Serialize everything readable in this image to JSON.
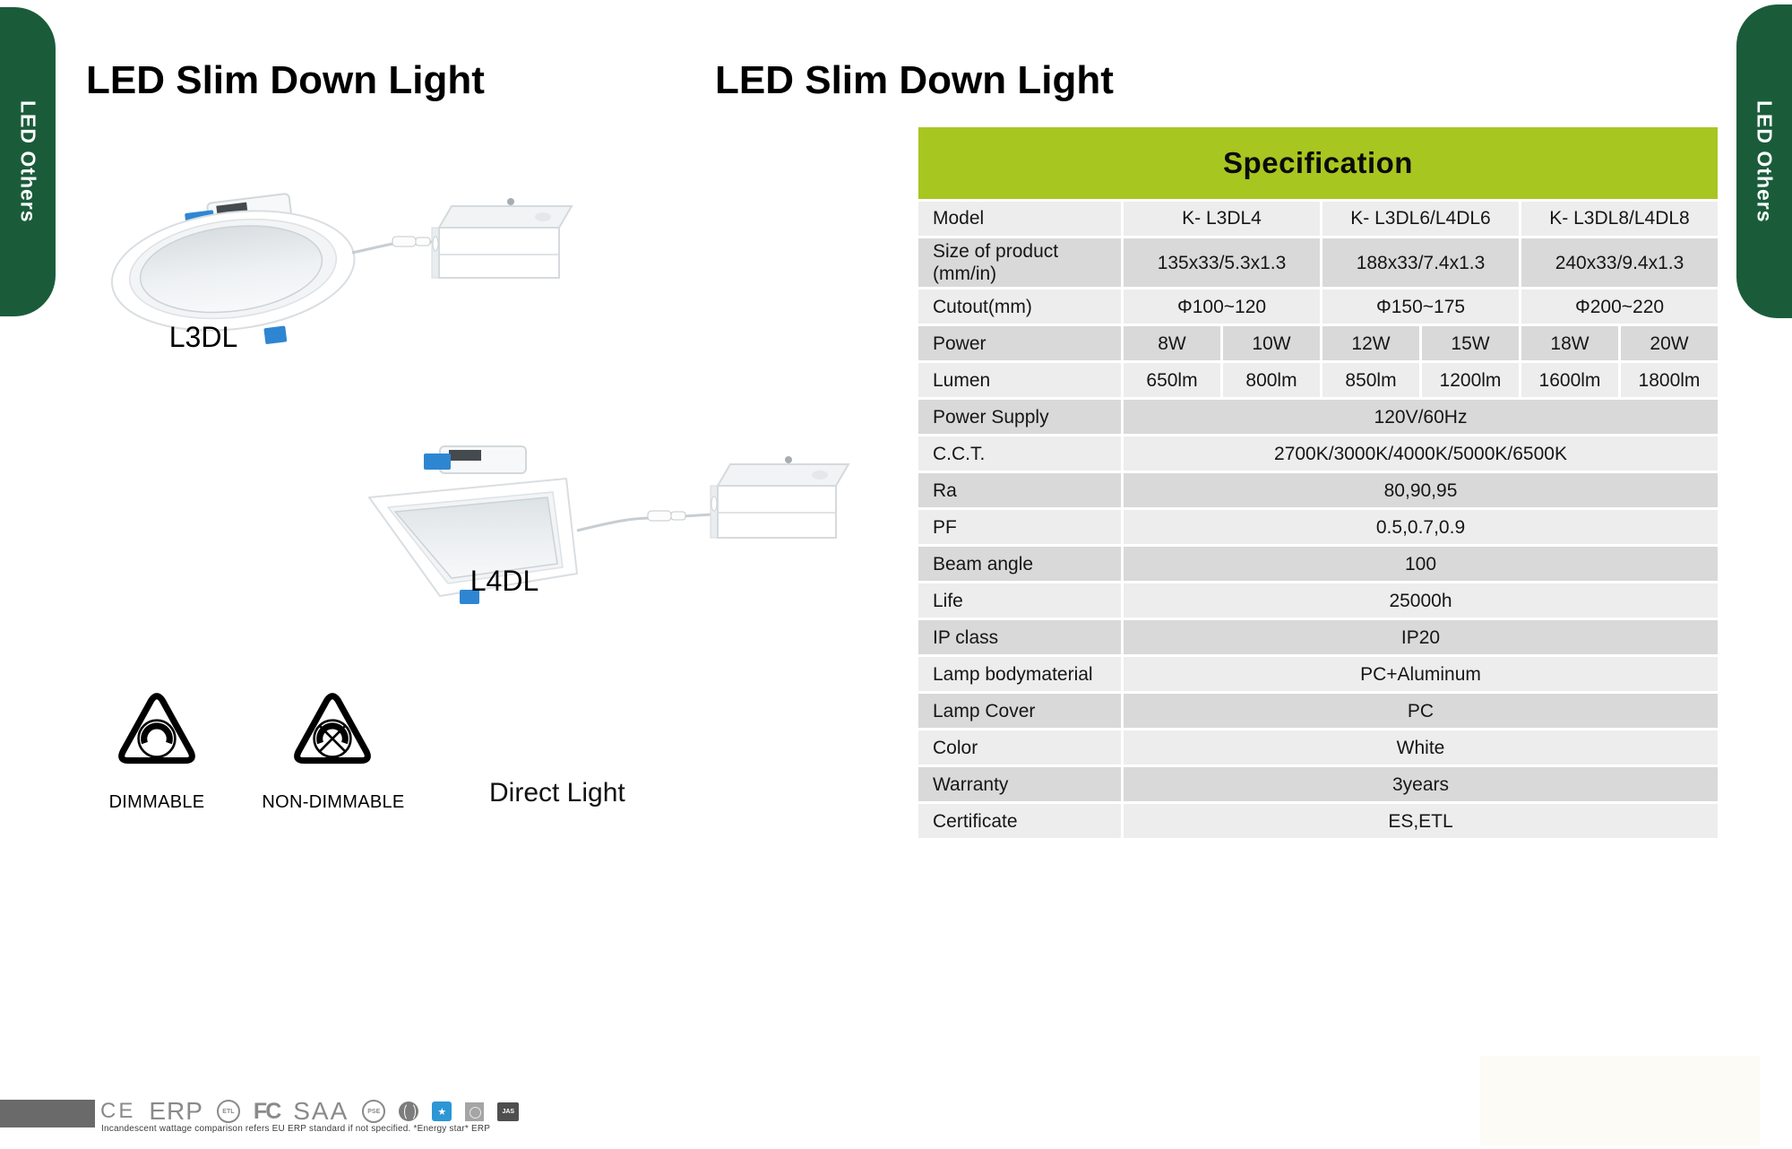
{
  "tabs": {
    "left_label": "LED Others",
    "right_label": "LED Others"
  },
  "left_panel": {
    "title": "LED Slim Down Light",
    "product1_label": "L3DL",
    "product2_label": "L4DL",
    "dimmable_label": "DIMMABLE",
    "non_dimmable_label": "NON-DIMMABLE",
    "direct_light_label": "Direct Light"
  },
  "right_panel": {
    "title": "LED Slim Down Light",
    "spec_table": {
      "header": "Specification",
      "rows": [
        {
          "label": "Model",
          "cells": [
            {
              "text": "K- L3DL4",
              "span": 2
            },
            {
              "text": "K- L3DL6/L4DL6",
              "span": 2
            },
            {
              "text": "K- L3DL8/L4DL8",
              "span": 2
            }
          ]
        },
        {
          "label": "Size of product (mm/in)",
          "cells": [
            {
              "text": "135x33/5.3x1.3",
              "span": 2
            },
            {
              "text": "188x33/7.4x1.3",
              "span": 2
            },
            {
              "text": "240x33/9.4x1.3",
              "span": 2
            }
          ]
        },
        {
          "label": "Cutout(mm)",
          "cells": [
            {
              "text": "Φ100~120",
              "span": 2
            },
            {
              "text": "Φ150~175",
              "span": 2
            },
            {
              "text": "Φ200~220",
              "span": 2
            }
          ]
        },
        {
          "label": "Power",
          "cells": [
            {
              "text": "8W"
            },
            {
              "text": "10W"
            },
            {
              "text": "12W"
            },
            {
              "text": "15W"
            },
            {
              "text": "18W"
            },
            {
              "text": "20W"
            }
          ]
        },
        {
          "label": "Lumen",
          "cells": [
            {
              "text": "650lm"
            },
            {
              "text": "800lm"
            },
            {
              "text": "850lm"
            },
            {
              "text": "1200lm"
            },
            {
              "text": "1600lm"
            },
            {
              "text": "1800lm"
            }
          ]
        },
        {
          "label": "Power Supply",
          "cells": [
            {
              "text": "120V/60Hz",
              "span": 6
            }
          ]
        },
        {
          "label": "C.C.T.",
          "cells": [
            {
              "text": "2700K/3000K/4000K/5000K/6500K",
              "span": 6
            }
          ]
        },
        {
          "label": "Ra",
          "cells": [
            {
              "text": "80,90,95",
              "span": 6
            }
          ]
        },
        {
          "label": "PF",
          "cells": [
            {
              "text": "0.5,0.7,0.9",
              "span": 6
            }
          ]
        },
        {
          "label": "Beam angle",
          "cells": [
            {
              "text": "100",
              "span": 6
            }
          ]
        },
        {
          "label": "Life",
          "cells": [
            {
              "text": "25000h",
              "span": 6
            }
          ]
        },
        {
          "label": "IP class",
          "cells": [
            {
              "text": "IP20",
              "span": 6
            }
          ]
        },
        {
          "label": "Lamp bodymaterial",
          "cells": [
            {
              "text": "PC+Aluminum",
              "span": 6
            }
          ]
        },
        {
          "label": "Lamp Cover",
          "cells": [
            {
              "text": "PC",
              "span": 6
            }
          ]
        },
        {
          "label": "Color",
          "cells": [
            {
              "text": "White",
              "span": 6
            }
          ]
        },
        {
          "label": "Warranty",
          "cells": [
            {
              "text": "3years",
              "span": 6
            }
          ]
        },
        {
          "label": "Certificate",
          "cells": [
            {
              "text": "ES,ETL",
              "span": 6
            }
          ]
        }
      ]
    }
  },
  "footer": {
    "logos": [
      {
        "id": "ce",
        "label": "CE"
      },
      {
        "id": "erp",
        "label": "ERP"
      },
      {
        "id": "etl",
        "label": "ETL"
      },
      {
        "id": "fcc",
        "label": "FC"
      },
      {
        "id": "saa",
        "label": "SAA"
      },
      {
        "id": "pse",
        "label": "PSE"
      },
      {
        "id": "globe",
        "label": ""
      },
      {
        "id": "energy-star",
        "label": ""
      },
      {
        "id": "rcm",
        "label": ""
      },
      {
        "id": "jas",
        "label": "JAS"
      }
    ],
    "caption": "Incandescent wattage comparison refers EU ERP standard if not specified. *Energy star* ERP"
  },
  "colors": {
    "tab_green": "#1a5c3a",
    "header_green": "#a8c620",
    "row_light": "#ededed",
    "row_dark": "#d9d9d9",
    "clip_blue": "#2e86d2",
    "energy_star_blue": "#2d96d5"
  }
}
